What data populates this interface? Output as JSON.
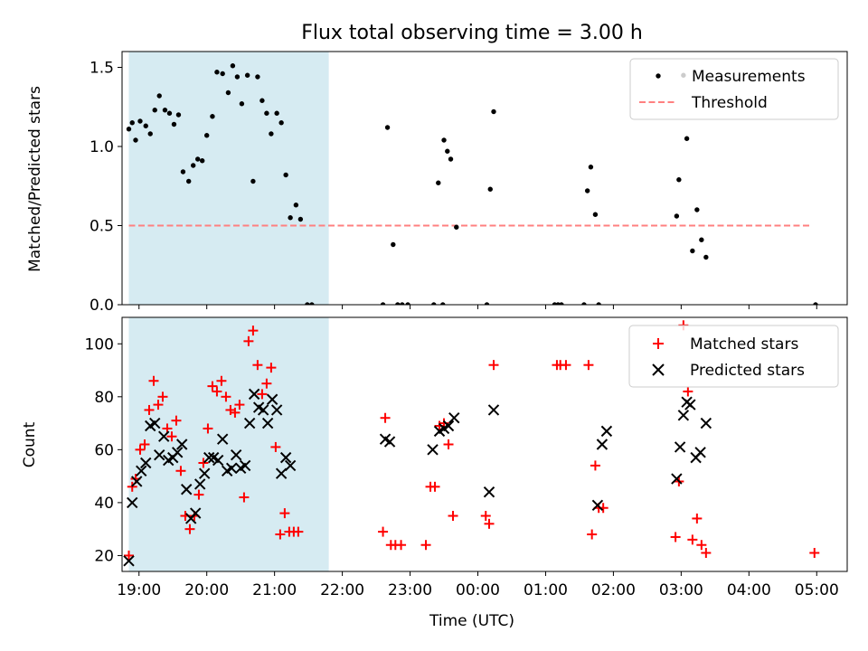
{
  "chart_data": [
    {
      "type": "scatter",
      "title": "Flux total observing time = 3.00 h",
      "ylabel": "Matched/Predicted stars",
      "xlabel": "",
      "xlim": [
        "18:45",
        "05:27"
      ],
      "ylim": [
        0,
        1.6
      ],
      "yticks": [
        0.0,
        0.5,
        1.0,
        1.5
      ],
      "ytick_labels": [
        "0.0",
        "0.5",
        "1.0",
        "1.5"
      ],
      "shaded_span": [
        "18:51",
        "21:48"
      ],
      "shade_color": "#add8e6",
      "legend_position": "upper right",
      "series": [
        {
          "name": "Measurements",
          "marker": "dot",
          "color": "#000000",
          "points": [
            [
              "18:51",
              1.11
            ],
            [
              "18:54",
              1.15
            ],
            [
              "18:57",
              1.04
            ],
            [
              "19:01",
              1.16
            ],
            [
              "19:06",
              1.13
            ],
            [
              "19:10",
              1.08
            ],
            [
              "19:14",
              1.23
            ],
            [
              "19:18",
              1.32
            ],
            [
              "19:23",
              1.23
            ],
            [
              "19:27",
              1.21
            ],
            [
              "19:31",
              1.14
            ],
            [
              "19:35",
              1.2
            ],
            [
              "19:39",
              0.84
            ],
            [
              "19:44",
              0.78
            ],
            [
              "19:48",
              0.88
            ],
            [
              "19:52",
              0.92
            ],
            [
              "19:56",
              0.91
            ],
            [
              "20:00",
              1.07
            ],
            [
              "20:05",
              1.19
            ],
            [
              "20:09",
              1.47
            ],
            [
              "20:14",
              1.46
            ],
            [
              "20:19",
              1.34
            ],
            [
              "20:23",
              1.51
            ],
            [
              "20:27",
              1.44
            ],
            [
              "20:31",
              1.27
            ],
            [
              "20:36",
              1.45
            ],
            [
              "20:41",
              0.78
            ],
            [
              "20:45",
              1.44
            ],
            [
              "20:49",
              1.29
            ],
            [
              "20:53",
              1.21
            ],
            [
              "20:57",
              1.08
            ],
            [
              "21:02",
              1.21
            ],
            [
              "21:06",
              1.15
            ],
            [
              "21:10",
              0.82
            ],
            [
              "21:14",
              0.55
            ],
            [
              "21:19",
              0.63
            ],
            [
              "21:23",
              0.54
            ],
            [
              "21:29",
              0.0
            ],
            [
              "21:33",
              0.0
            ],
            [
              "22:36",
              0.0
            ],
            [
              "22:40",
              1.12
            ],
            [
              "22:45",
              0.38
            ],
            [
              "22:49",
              0.0
            ],
            [
              "22:53",
              0.0
            ],
            [
              "22:58",
              0.0
            ],
            [
              "23:21",
              0.0
            ],
            [
              "23:25",
              0.77
            ],
            [
              "23:29",
              0.0
            ],
            [
              "23:30",
              1.04
            ],
            [
              "23:33",
              0.97
            ],
            [
              "23:36",
              0.92
            ],
            [
              "23:41",
              0.49
            ],
            [
              "00:08",
              0.0
            ],
            [
              "00:11",
              0.73
            ],
            [
              "00:14",
              1.22
            ],
            [
              "01:08",
              0.0
            ],
            [
              "01:11",
              0.0
            ],
            [
              "01:14",
              0.0
            ],
            [
              "01:34",
              0.0
            ],
            [
              "01:37",
              0.72
            ],
            [
              "01:40",
              0.87
            ],
            [
              "01:44",
              0.57
            ],
            [
              "01:47",
              0.0
            ],
            [
              "02:56",
              0.56
            ],
            [
              "02:58",
              0.79
            ],
            [
              "03:02",
              1.45
            ],
            [
              "03:05",
              1.05
            ],
            [
              "03:10",
              0.34
            ],
            [
              "03:14",
              0.6
            ],
            [
              "03:18",
              0.41
            ],
            [
              "03:22",
              0.3
            ],
            [
              "04:59",
              0.0
            ]
          ]
        },
        {
          "name": "Threshold",
          "style": "dashed-line",
          "color": "#ff8080",
          "y": 0.5,
          "x": [
            "18:51",
            "04:56"
          ]
        }
      ]
    },
    {
      "type": "scatter",
      "title": "",
      "ylabel": "Count",
      "xlabel": "Time (UTC)",
      "xlim": [
        "18:45",
        "05:27"
      ],
      "ylim": [
        14,
        110
      ],
      "yticks": [
        20,
        40,
        60,
        80,
        100
      ],
      "ytick_labels": [
        "20",
        "40",
        "60",
        "80",
        "100"
      ],
      "xticks": [
        "19:00",
        "20:00",
        "21:00",
        "22:00",
        "23:00",
        "00:00",
        "01:00",
        "02:00",
        "03:00",
        "04:00",
        "05:00"
      ],
      "shaded_span": [
        "18:51",
        "21:48"
      ],
      "shade_color": "#add8e6",
      "legend_position": "upper right",
      "series": [
        {
          "name": "Matched stars",
          "marker": "plus",
          "color": "#ff0000",
          "points": [
            [
              "18:51",
              20
            ],
            [
              "18:54",
              46
            ],
            [
              "18:57",
              49
            ],
            [
              "19:01",
              60
            ],
            [
              "19:05",
              62
            ],
            [
              "19:09",
              75
            ],
            [
              "19:13",
              86
            ],
            [
              "19:17",
              77
            ],
            [
              "19:21",
              80
            ],
            [
              "19:25",
              68
            ],
            [
              "19:29",
              65
            ],
            [
              "19:33",
              71
            ],
            [
              "19:37",
              52
            ],
            [
              "19:41",
              35
            ],
            [
              "19:45",
              30
            ],
            [
              "19:49",
              35
            ],
            [
              "19:53",
              43
            ],
            [
              "19:57",
              55
            ],
            [
              "20:01",
              68
            ],
            [
              "20:05",
              84
            ],
            [
              "20:09",
              82
            ],
            [
              "20:13",
              86
            ],
            [
              "20:17",
              80
            ],
            [
              "20:21",
              75
            ],
            [
              "20:25",
              74
            ],
            [
              "20:29",
              77
            ],
            [
              "20:33",
              42
            ],
            [
              "20:37",
              101
            ],
            [
              "20:41",
              105
            ],
            [
              "20:45",
              92
            ],
            [
              "20:49",
              81
            ],
            [
              "20:53",
              85
            ],
            [
              "20:57",
              91
            ],
            [
              "21:01",
              61
            ],
            [
              "21:05",
              28
            ],
            [
              "21:09",
              36
            ],
            [
              "21:13",
              29
            ],
            [
              "21:17",
              29
            ],
            [
              "21:21",
              29
            ],
            [
              "22:36",
              29
            ],
            [
              "22:38",
              72
            ],
            [
              "22:43",
              24
            ],
            [
              "22:47",
              24
            ],
            [
              "22:52",
              24
            ],
            [
              "23:14",
              24
            ],
            [
              "23:18",
              46
            ],
            [
              "23:22",
              46
            ],
            [
              "23:26",
              69
            ],
            [
              "23:30",
              70
            ],
            [
              "23:34",
              62
            ],
            [
              "23:38",
              35
            ],
            [
              "00:07",
              35
            ],
            [
              "00:10",
              32
            ],
            [
              "00:14",
              92
            ],
            [
              "01:10",
              92
            ],
            [
              "01:13",
              92
            ],
            [
              "01:18",
              92
            ],
            [
              "01:38",
              92
            ],
            [
              "01:41",
              28
            ],
            [
              "01:44",
              54
            ],
            [
              "01:47",
              38
            ],
            [
              "01:51",
              38
            ],
            [
              "02:55",
              27
            ],
            [
              "02:58",
              48
            ],
            [
              "03:02",
              107
            ],
            [
              "03:06",
              82
            ],
            [
              "03:10",
              26
            ],
            [
              "03:14",
              34
            ],
            [
              "03:18",
              24
            ],
            [
              "03:22",
              21
            ],
            [
              "04:58",
              21
            ]
          ]
        },
        {
          "name": "Predicted stars",
          "marker": "x",
          "color": "#000000",
          "points": [
            [
              "18:51",
              18
            ],
            [
              "18:54",
              40
            ],
            [
              "18:58",
              48
            ],
            [
              "19:02",
              52
            ],
            [
              "19:06",
              55
            ],
            [
              "19:10",
              69
            ],
            [
              "19:14",
              70
            ],
            [
              "19:18",
              58
            ],
            [
              "19:22",
              65
            ],
            [
              "19:26",
              56
            ],
            [
              "19:30",
              57
            ],
            [
              "19:34",
              59
            ],
            [
              "19:38",
              62
            ],
            [
              "19:42",
              45
            ],
            [
              "19:46",
              34
            ],
            [
              "19:50",
              36
            ],
            [
              "19:54",
              47
            ],
            [
              "19:58",
              51
            ],
            [
              "20:02",
              57
            ],
            [
              "20:06",
              57
            ],
            [
              "20:10",
              56
            ],
            [
              "20:14",
              64
            ],
            [
              "20:18",
              52
            ],
            [
              "20:22",
              53
            ],
            [
              "20:26",
              58
            ],
            [
              "20:30",
              53
            ],
            [
              "20:34",
              54
            ],
            [
              "20:38",
              70
            ],
            [
              "20:42",
              81
            ],
            [
              "20:46",
              76
            ],
            [
              "20:50",
              75
            ],
            [
              "20:54",
              70
            ],
            [
              "20:58",
              79
            ],
            [
              "21:02",
              75
            ],
            [
              "21:06",
              51
            ],
            [
              "21:10",
              57
            ],
            [
              "21:14",
              54
            ],
            [
              "22:38",
              64
            ],
            [
              "22:42",
              63
            ],
            [
              "23:20",
              60
            ],
            [
              "23:26",
              67
            ],
            [
              "23:30",
              68
            ],
            [
              "23:34",
              69
            ],
            [
              "23:39",
              72
            ],
            [
              "00:10",
              44
            ],
            [
              "00:14",
              75
            ],
            [
              "01:46",
              39
            ],
            [
              "01:50",
              62
            ],
            [
              "01:54",
              67
            ],
            [
              "02:56",
              49
            ],
            [
              "02:59",
              61
            ],
            [
              "03:02",
              73
            ],
            [
              "03:05",
              78
            ],
            [
              "03:08",
              77
            ],
            [
              "03:13",
              57
            ],
            [
              "03:17",
              59
            ],
            [
              "03:22",
              70
            ]
          ]
        }
      ]
    }
  ]
}
